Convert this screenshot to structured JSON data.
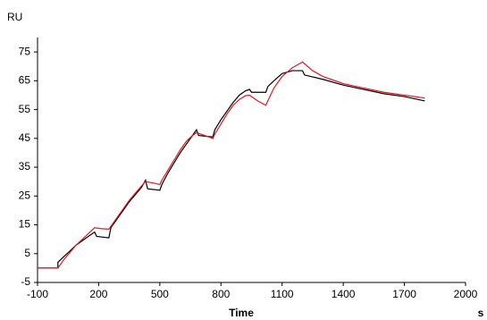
{
  "chart_data": {
    "type": "line",
    "y_label": "RU",
    "x_label": "Time",
    "x_unit": "s",
    "xlim": [
      -100,
      2000
    ],
    "xticks": [
      -100,
      200,
      500,
      800,
      1100,
      1400,
      1700,
      2000
    ],
    "ylim": [
      -5,
      80
    ],
    "yticks": [
      -5,
      5,
      15,
      25,
      35,
      45,
      55,
      65,
      75
    ],
    "series": [
      {
        "color": "#000000",
        "x": [
          -100,
          0,
          0,
          30,
          60,
          90,
          120,
          150,
          180,
          190,
          250,
          260,
          290,
          320,
          350,
          380,
          410,
          430,
          440,
          500,
          510,
          540,
          570,
          600,
          630,
          660,
          680,
          690,
          760,
          770,
          800,
          830,
          860,
          890,
          920,
          940,
          950,
          1020,
          1030,
          1060,
          1100,
          1150,
          1200,
          1210,
          1300,
          1400,
          1500,
          1600,
          1700,
          1800
        ],
        "values": [
          0,
          0,
          2,
          4,
          6,
          8,
          9.5,
          11,
          12.5,
          11,
          10.5,
          14,
          17,
          20,
          23,
          25.5,
          28,
          30.5,
          27.5,
          27,
          29,
          33,
          36.5,
          40,
          43,
          46,
          48,
          46,
          45.5,
          48,
          51.5,
          54.5,
          57.5,
          60,
          61.5,
          62,
          61,
          61,
          63,
          65,
          67.5,
          68.5,
          68.5,
          67,
          65.5,
          63.5,
          62,
          60.5,
          59.5,
          58
        ]
      },
      {
        "color": "#e8141e",
        "x": [
          -100,
          0,
          30,
          60,
          90,
          120,
          150,
          180,
          210,
          250,
          260,
          290,
          320,
          350,
          380,
          410,
          430,
          470,
          500,
          510,
          540,
          570,
          600,
          630,
          660,
          680,
          720,
          760,
          770,
          800,
          830,
          860,
          890,
          920,
          940,
          980,
          1020,
          1030,
          1060,
          1100,
          1150,
          1200,
          1250,
          1300,
          1400,
          1500,
          1600,
          1700,
          1800
        ],
        "values": [
          0,
          0,
          3,
          5.5,
          8,
          10,
          12,
          14,
          13.7,
          13.5,
          14.5,
          17.5,
          20.5,
          23.5,
          26,
          28.5,
          30,
          29.5,
          29,
          30.5,
          34,
          37.5,
          41,
          44,
          46,
          47,
          46,
          45,
          46.5,
          50,
          53.5,
          56.5,
          58.5,
          59.8,
          60,
          58,
          56.5,
          58,
          62.5,
          66.5,
          69.5,
          71.5,
          68.5,
          66.5,
          64,
          62.5,
          61,
          60,
          59
        ]
      }
    ]
  }
}
